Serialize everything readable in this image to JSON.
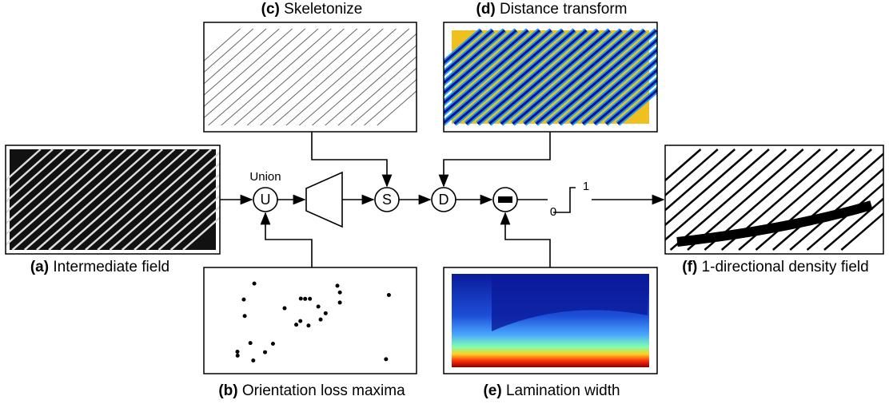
{
  "panels": [
    {
      "letter": "(a)",
      "caption": "Intermediate field"
    },
    {
      "letter": "(b)",
      "caption": "Orientation loss maxima"
    },
    {
      "letter": "(c)",
      "caption": "Skeletonize"
    },
    {
      "letter": "(d)",
      "caption": "Distance transform"
    },
    {
      "letter": "(e)",
      "caption": "Lamination width"
    },
    {
      "letter": "(f)",
      "caption": "1-directional density field"
    }
  ],
  "union_label": "Union",
  "nodes": [
    {
      "label": "U"
    },
    {
      "label": "S"
    },
    {
      "label": "D"
    }
  ],
  "step": {
    "low": "0",
    "high": "1"
  }
}
